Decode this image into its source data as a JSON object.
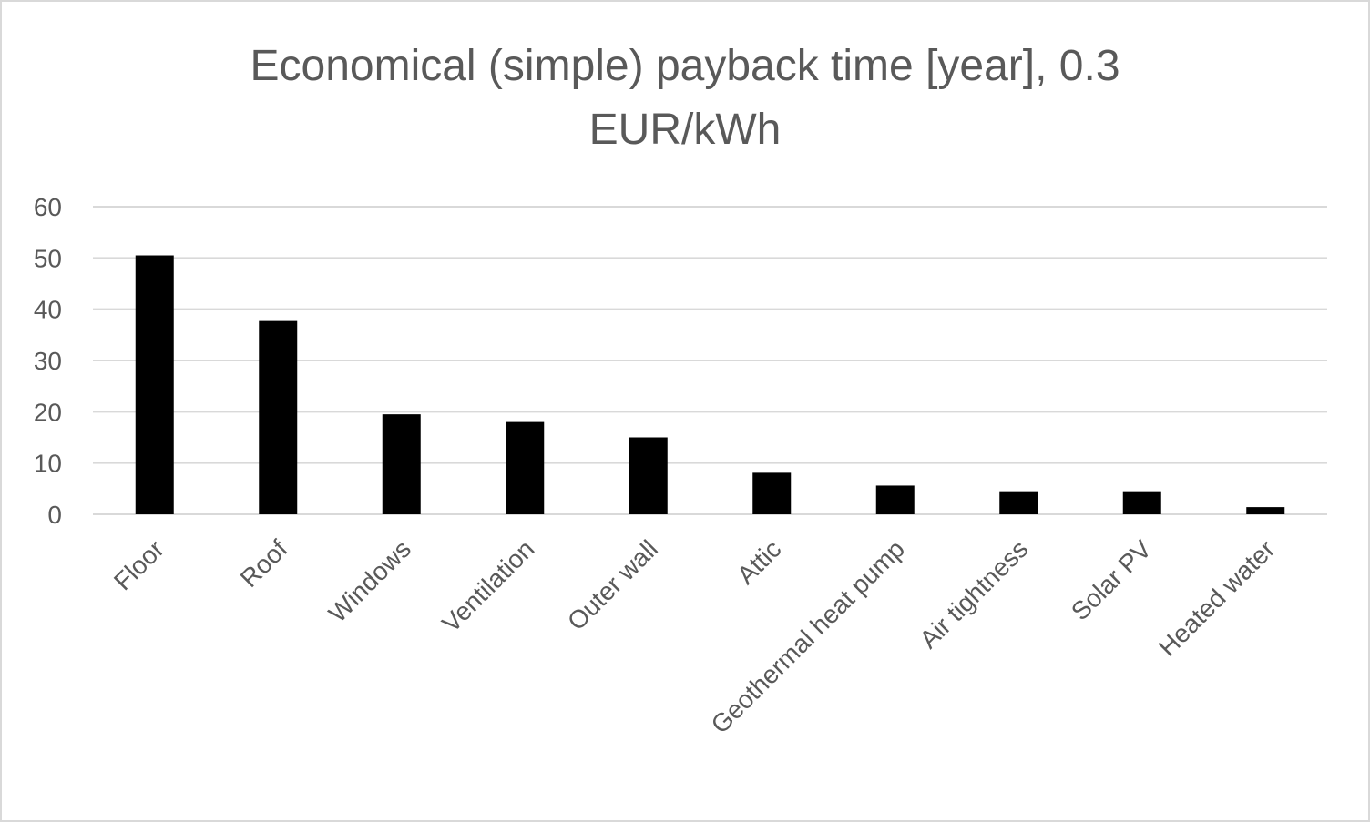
{
  "chart_data": {
    "type": "bar",
    "title_lines": [
      "Economical (simple) payback time [year], 0.3",
      "EUR/kWh"
    ],
    "categories": [
      "Floor",
      "Roof",
      "Windows",
      "Ventilation",
      "Outer wall",
      "Attic",
      "Geothermal heat pump",
      "Air tightness",
      "Solar PV",
      "Heated water"
    ],
    "values": [
      50.5,
      37.7,
      19.5,
      18.0,
      15.0,
      8.1,
      5.6,
      4.5,
      4.5,
      1.4
    ],
    "ylim": [
      0,
      60
    ],
    "yticks": [
      0,
      10,
      20,
      30,
      40,
      50,
      60
    ],
    "grid": true,
    "legend": "none",
    "colors": {
      "bar": "#000000",
      "grid": "#d9d9d9",
      "text": "#595959"
    }
  }
}
